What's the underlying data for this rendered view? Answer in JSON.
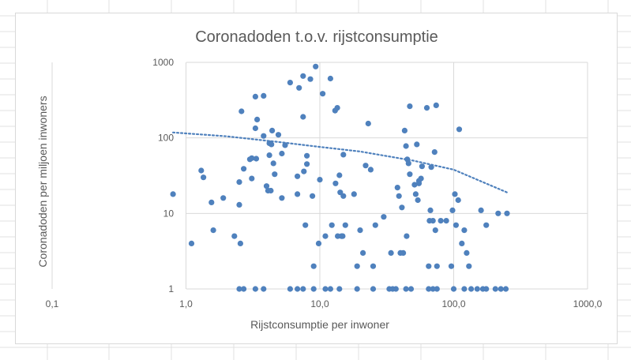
{
  "chart_data": {
    "type": "scatter",
    "title": "Coronadoden t.o.v. rijstconsumptie",
    "xlabel": "Rijstconsumptie per inwoner",
    "ylabel": "Coronadoden per miljoen inwoners",
    "x_scale": "log",
    "y_scale": "log",
    "xlim": [
      0.1,
      1000
    ],
    "ylim": [
      1,
      1000
    ],
    "x_ticks": [
      "0,1",
      "1,0",
      "10,0",
      "100,0",
      "1000,0"
    ],
    "y_ticks": [
      "1",
      "10",
      "100",
      "1000"
    ],
    "grid": "major",
    "legend": "none",
    "marker_color": "#4f81bd",
    "trendline": {
      "style": "dotted",
      "color": "#4f81bd",
      "points": [
        [
          0.8,
          118
        ],
        [
          2,
          105
        ],
        [
          5,
          88
        ],
        [
          10,
          76
        ],
        [
          20,
          66
        ],
        [
          50,
          50
        ],
        [
          100,
          38
        ],
        [
          250,
          19
        ]
      ]
    },
    "points": [
      [
        0.8,
        18
      ],
      [
        1.1,
        4
      ],
      [
        1.3,
        37
      ],
      [
        1.35,
        30
      ],
      [
        1.55,
        14
      ],
      [
        1.6,
        6
      ],
      [
        1.9,
        16
      ],
      [
        2.3,
        5
      ],
      [
        2.5,
        26
      ],
      [
        2.5,
        13
      ],
      [
        2.55,
        4
      ],
      [
        2.6,
        225
      ],
      [
        2.7,
        39
      ],
      [
        3.0,
        52
      ],
      [
        3.1,
        54
      ],
      [
        3.1,
        29
      ],
      [
        3.3,
        352
      ],
      [
        3.3,
        134
      ],
      [
        3.35,
        53
      ],
      [
        3.4,
        175
      ],
      [
        3.8,
        360
      ],
      [
        3.8,
        106
      ],
      [
        4.0,
        23
      ],
      [
        4.1,
        20
      ],
      [
        4.2,
        59
      ],
      [
        4.2,
        85
      ],
      [
        4.3,
        20
      ],
      [
        4.35,
        82
      ],
      [
        4.4,
        125
      ],
      [
        4.5,
        46
      ],
      [
        4.6,
        33
      ],
      [
        4.9,
        110
      ],
      [
        5.2,
        62
      ],
      [
        5.2,
        16
      ],
      [
        5.5,
        80
      ],
      [
        6.0,
        540
      ],
      [
        6.8,
        31
      ],
      [
        6.8,
        18
      ],
      [
        7.0,
        460
      ],
      [
        7.5,
        190
      ],
      [
        7.5,
        660
      ],
      [
        7.6,
        36
      ],
      [
        7.8,
        7
      ],
      [
        8.0,
        58
      ],
      [
        8.0,
        45
      ],
      [
        8.5,
        600
      ],
      [
        8.8,
        17
      ],
      [
        9.0,
        2
      ],
      [
        9.3,
        880
      ],
      [
        9.8,
        4
      ],
      [
        10.0,
        28
      ],
      [
        10.5,
        385
      ],
      [
        11.0,
        5
      ],
      [
        12.0,
        610
      ],
      [
        12.3,
        7
      ],
      [
        13.0,
        230
      ],
      [
        13.1,
        25
      ],
      [
        13.5,
        250
      ],
      [
        13.6,
        5
      ],
      [
        14.0,
        32
      ],
      [
        14.2,
        19
      ],
      [
        14.5,
        5
      ],
      [
        14.8,
        5
      ],
      [
        15.0,
        17
      ],
      [
        15.0,
        60
      ],
      [
        15.5,
        7
      ],
      [
        18.0,
        18
      ],
      [
        19.0,
        2
      ],
      [
        20.0,
        6
      ],
      [
        21.0,
        3
      ],
      [
        22.0,
        43
      ],
      [
        23.0,
        155
      ],
      [
        24.0,
        38
      ],
      [
        25.0,
        2
      ],
      [
        26.0,
        7
      ],
      [
        30.0,
        9
      ],
      [
        34.0,
        3
      ],
      [
        38.0,
        22
      ],
      [
        39.0,
        17
      ],
      [
        40.0,
        3
      ],
      [
        41.0,
        12
      ],
      [
        42.0,
        3
      ],
      [
        43.0,
        125
      ],
      [
        44.0,
        78
      ],
      [
        44.5,
        5
      ],
      [
        45.0,
        52
      ],
      [
        46.0,
        46
      ],
      [
        47.0,
        33
      ],
      [
        47.0,
        262
      ],
      [
        51.0,
        24
      ],
      [
        52.0,
        18
      ],
      [
        53.0,
        82
      ],
      [
        54.0,
        15
      ],
      [
        55.0,
        25
      ],
      [
        55.0,
        27
      ],
      [
        57.0,
        29
      ],
      [
        58.0,
        42
      ],
      [
        63.0,
        250
      ],
      [
        65.0,
        2
      ],
      [
        66.0,
        8
      ],
      [
        67.0,
        11
      ],
      [
        68.0,
        41
      ],
      [
        70.0,
        8
      ],
      [
        72.0,
        65
      ],
      [
        73.0,
        6
      ],
      [
        74.0,
        270
      ],
      [
        75.0,
        2
      ],
      [
        80.0,
        8
      ],
      [
        88.0,
        8
      ],
      [
        96.0,
        2
      ],
      [
        98.0,
        11
      ],
      [
        102.0,
        18
      ],
      [
        104.0,
        7
      ],
      [
        108.0,
        15
      ],
      [
        110.0,
        130
      ],
      [
        115.0,
        4
      ],
      [
        120.0,
        6
      ],
      [
        125.0,
        3
      ],
      [
        130.0,
        2
      ],
      [
        160.0,
        11
      ],
      [
        175.0,
        7
      ],
      [
        215.0,
        10
      ],
      [
        250.0,
        10
      ],
      [
        2.5,
        1
      ],
      [
        2.7,
        1
      ],
      [
        3.3,
        1
      ],
      [
        3.8,
        1
      ],
      [
        6.0,
        1
      ],
      [
        6.8,
        1
      ],
      [
        7.5,
        1
      ],
      [
        9.0,
        1
      ],
      [
        11.0,
        1
      ],
      [
        12.0,
        1
      ],
      [
        14.0,
        1
      ],
      [
        19.0,
        1
      ],
      [
        25.0,
        1
      ],
      [
        33.0,
        1
      ],
      [
        35.0,
        1
      ],
      [
        37.0,
        1
      ],
      [
        44.0,
        1
      ],
      [
        48.0,
        1
      ],
      [
        65.0,
        1
      ],
      [
        70.0,
        1
      ],
      [
        75.0,
        1
      ],
      [
        100.0,
        1
      ],
      [
        120.0,
        1
      ],
      [
        135.0,
        1
      ],
      [
        150.0,
        1
      ],
      [
        165.0,
        1
      ],
      [
        175.0,
        1
      ],
      [
        205.0,
        1
      ],
      [
        225.0,
        1
      ],
      [
        245.0,
        1
      ]
    ]
  }
}
